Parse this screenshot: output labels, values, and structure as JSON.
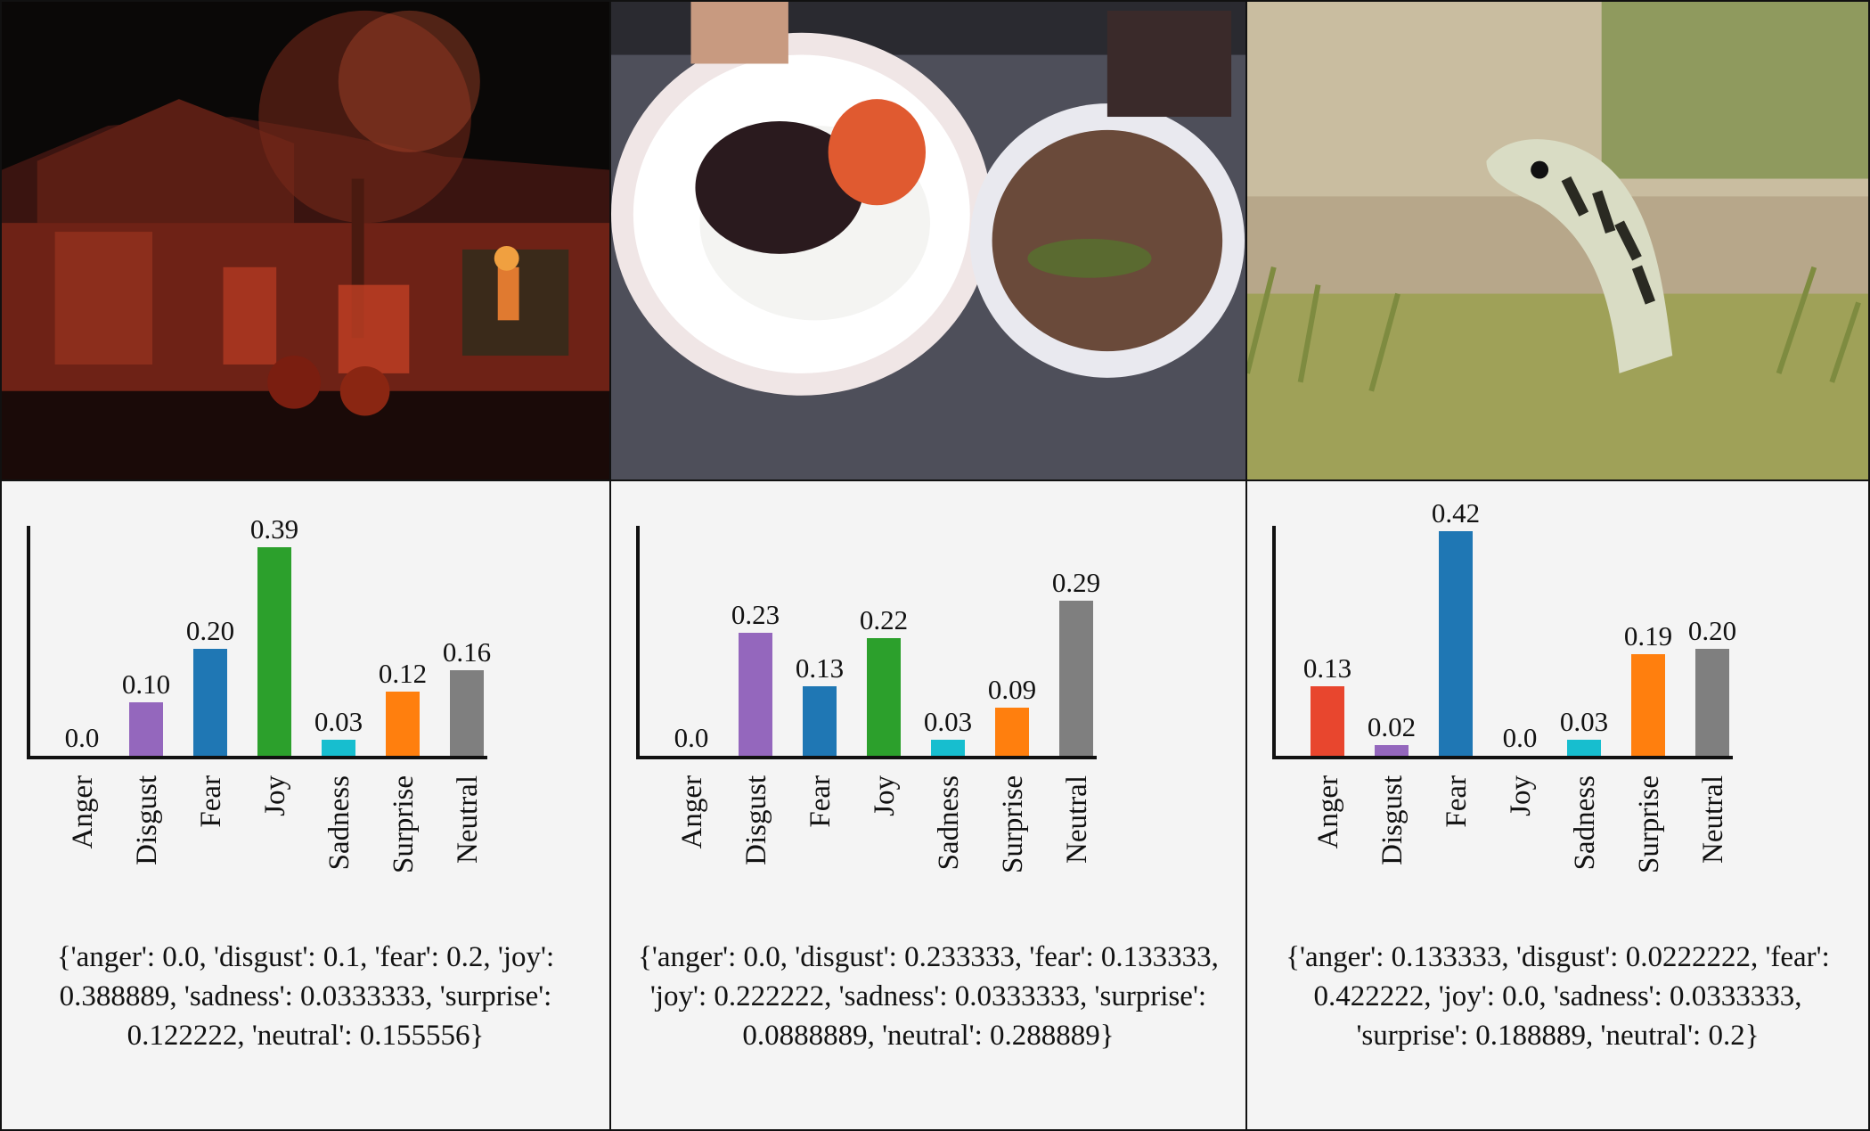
{
  "chart_data": [
    {
      "type": "bar",
      "categories": [
        "Anger",
        "Disgust",
        "Fear",
        "Joy",
        "Sadness",
        "Surprise",
        "Neutral"
      ],
      "values": [
        0.0,
        0.1,
        0.2,
        0.39,
        0.03,
        0.12,
        0.16
      ],
      "value_labels": [
        "0.0",
        "0.10",
        "0.20",
        "0.39",
        "0.03",
        "0.12",
        "0.16"
      ],
      "colors": [
        "#d62728",
        "#9467bd",
        "#1f77b4",
        "#2ca02c",
        "#17becf",
        "#ff7f0e",
        "#7f7f7f"
      ],
      "dict_text": "{'anger': 0.0, 'disgust': 0.1, 'fear': 0.2, 'joy': 0.388889, 'sadness': 0.0333333, 'surprise': 0.122222, 'neutral': 0.155556}"
    },
    {
      "type": "bar",
      "categories": [
        "Anger",
        "Disgust",
        "Fear",
        "Joy",
        "Sadness",
        "Surprise",
        "Neutral"
      ],
      "values": [
        0.0,
        0.23,
        0.13,
        0.22,
        0.03,
        0.09,
        0.29
      ],
      "value_labels": [
        "0.0",
        "0.23",
        "0.13",
        "0.22",
        "0.03",
        "0.09",
        "0.29"
      ],
      "colors": [
        "#d62728",
        "#9467bd",
        "#1f77b4",
        "#2ca02c",
        "#17becf",
        "#ff7f0e",
        "#7f7f7f"
      ],
      "dict_text": "{'anger': 0.0, 'disgust': 0.233333, 'fear': 0.133333, 'joy': 0.222222, 'sadness': 0.0333333, 'surprise': 0.0888889, 'neutral': 0.288889}"
    },
    {
      "type": "bar",
      "categories": [
        "Anger",
        "Disgust",
        "Fear",
        "Joy",
        "Sadness",
        "Surprise",
        "Neutral"
      ],
      "values": [
        0.13,
        0.02,
        0.42,
        0.0,
        0.03,
        0.19,
        0.2
      ],
      "value_labels": [
        "0.13",
        "0.02",
        "0.42",
        "0.0",
        "0.03",
        "0.19",
        "0.20"
      ],
      "colors": [
        "#e8462e",
        "#9467bd",
        "#1f77b4",
        "#2ca02c",
        "#17becf",
        "#ff7f0e",
        "#7f7f7f"
      ],
      "dict_text": "{'anger': 0.133333, 'disgust': 0.0222222, 'fear': 0.422222, 'joy': 0.0, 'sadness': 0.0333333, 'surprise': 0.188889, 'neutral': 0.2}"
    }
  ]
}
